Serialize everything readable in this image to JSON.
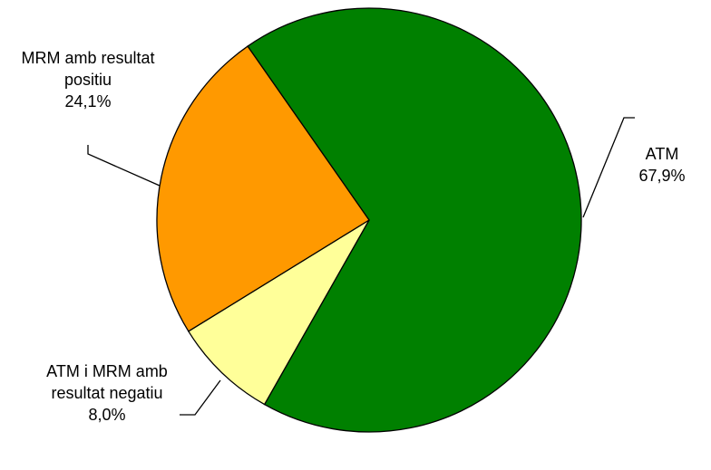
{
  "chart_data": {
    "type": "pie",
    "categories": [
      "ATM",
      "ATM i MRM amb resultat negatiu",
      "MRM amb resultat positiu"
    ],
    "values": [
      67.9,
      8.0,
      24.1
    ],
    "value_labels": [
      "67,9%",
      "8,0%",
      "24,1%"
    ],
    "colors": [
      "#008000",
      "#ffff99",
      "#ff9900"
    ]
  }
}
